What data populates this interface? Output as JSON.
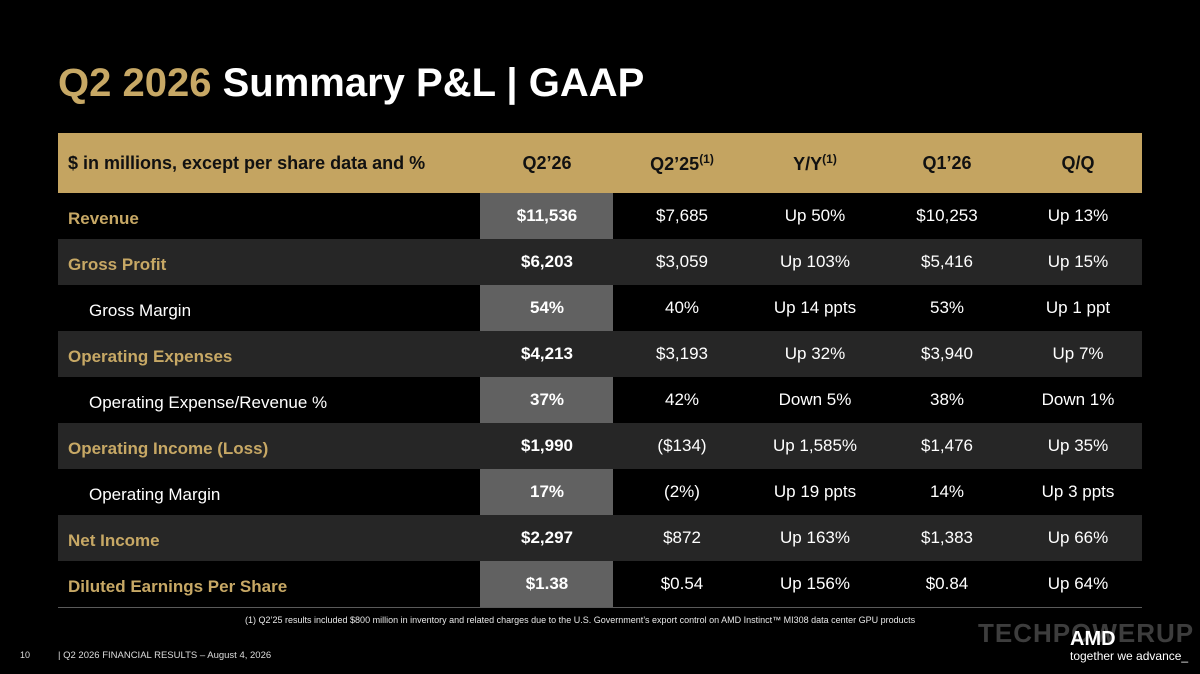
{
  "title": {
    "accent": "Q2 2026",
    "rest": "Summary P&L  |  GAAP"
  },
  "table": {
    "headers": [
      {
        "text": "$ in millions, except per share data and %",
        "sup": ""
      },
      {
        "text": "Q2’26",
        "sup": ""
      },
      {
        "text": "Q2’25",
        "sup": "(1)"
      },
      {
        "text": "Y/Y",
        "sup": "(1)"
      },
      {
        "text": "Q1’26",
        "sup": ""
      },
      {
        "text": "Q/Q",
        "sup": ""
      }
    ],
    "rows": [
      {
        "label": "Revenue",
        "q2_26": "$11,536",
        "q2_25": "$7,685",
        "yy": "Up 50%",
        "q1_26": "$10,253",
        "qq": "Up 13%"
      },
      {
        "label": "Gross Profit",
        "q2_26": "$6,203",
        "q2_25": "$3,059",
        "yy": "Up 103%",
        "q1_26": "$5,416",
        "qq": "Up 15%"
      },
      {
        "label": "Gross Margin",
        "q2_26": "54%",
        "q2_25": "40%",
        "yy": "Up 14 ppts",
        "q1_26": "53%",
        "qq": "Up 1 ppt"
      },
      {
        "label": "Operating Expenses",
        "q2_26": "$4,213",
        "q2_25": "$3,193",
        "yy": "Up 32%",
        "q1_26": "$3,940",
        "qq": "Up 7%"
      },
      {
        "label": "Operating Expense/Revenue %",
        "q2_26": "37%",
        "q2_25": "42%",
        "yy": "Down 5%",
        "q1_26": "38%",
        "qq": "Down 1%"
      },
      {
        "label": "Operating Income (Loss)",
        "q2_26": "$1,990",
        "q2_25": "($134)",
        "yy": "Up 1,585%",
        "q1_26": "$1,476",
        "qq": "Up 35%"
      },
      {
        "label": "Operating Margin",
        "q2_26": "17%",
        "q2_25": "(2%)",
        "yy": "Up 19 ppts",
        "q1_26": "14%",
        "qq": "Up 3 ppts"
      },
      {
        "label": "Net Income",
        "q2_26": "$2,297",
        "q2_25": "$872",
        "yy": "Up 163%",
        "q1_26": "$1,383",
        "qq": "Up 66%"
      },
      {
        "label": "Diluted Earnings Per Share",
        "q2_26": "$1.38",
        "q2_25": "$0.54",
        "yy": "Up 156%",
        "q1_26": "$0.84",
        "qq": "Up 64%"
      }
    ]
  },
  "footnote": "(1) Q2’25 results included $800 million in inventory and related charges due to the U.S. Government’s export control on AMD Instinct™ MI308 data center GPU products",
  "footer": {
    "page": "10",
    "text": "|  Q2 2026 FINANCIAL RESULTS – August 4, 2026"
  },
  "brand": {
    "logo": "AMD",
    "tagline": "together we advance_",
    "watermark": "TECHPOWERUP"
  },
  "colors": {
    "gold": "#C7A865",
    "header_bg": "#C4A461",
    "highlight_column": "#616161",
    "row_shade": "#262626"
  }
}
